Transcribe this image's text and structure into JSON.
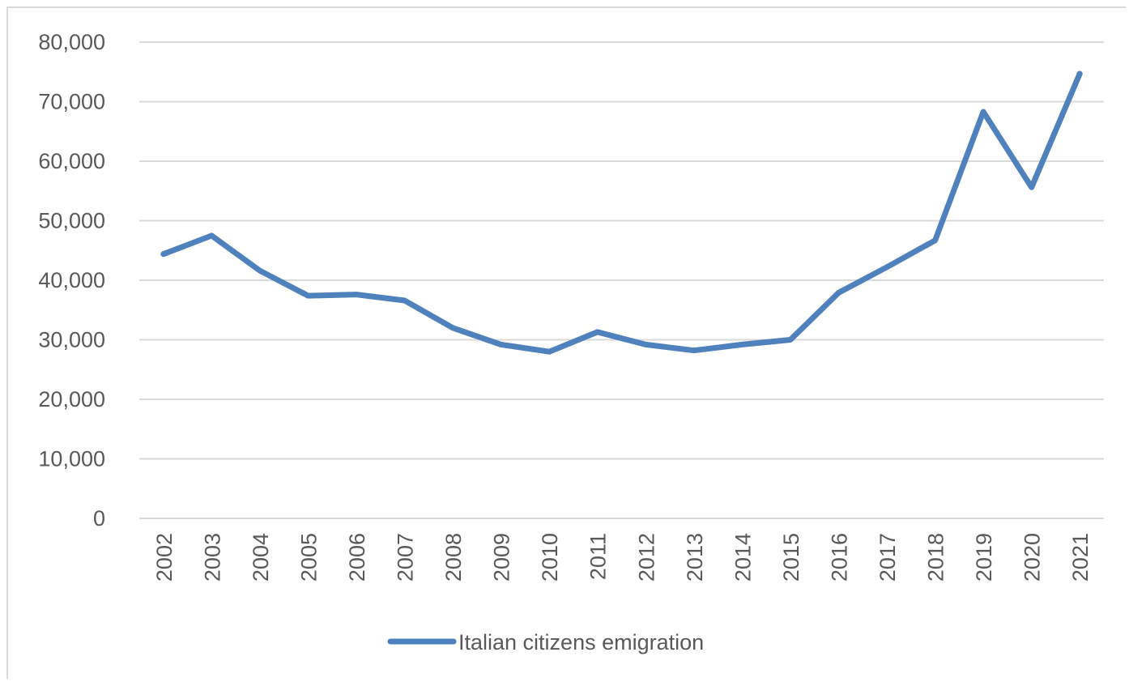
{
  "chart_data": {
    "type": "line",
    "title": "",
    "xlabel": "",
    "ylabel": "",
    "ylim": [
      0,
      80000
    ],
    "yticks": [
      0,
      10000,
      20000,
      30000,
      40000,
      50000,
      60000,
      70000,
      80000
    ],
    "ytick_labels": [
      "0",
      "10,000",
      "20,000",
      "30,000",
      "40,000",
      "50,000",
      "60,000",
      "70,000",
      "80,000"
    ],
    "categories": [
      "2002",
      "2003",
      "2004",
      "2005",
      "2006",
      "2007",
      "2008",
      "2009",
      "2010",
      "2011",
      "2012",
      "2013",
      "2014",
      "2015",
      "2016",
      "2017",
      "2018",
      "2019",
      "2020",
      "2021"
    ],
    "series": [
      {
        "name": "Italian citizens emigration",
        "color": "#4f81bd",
        "values": [
          44400,
          47500,
          41600,
          37400,
          37600,
          36600,
          32000,
          29200,
          28000,
          31300,
          29200,
          28200,
          29200,
          30000,
          37900,
          42200,
          46700,
          68300,
          55600,
          74700
        ]
      }
    ],
    "grid": true,
    "legend_position": "bottom"
  }
}
